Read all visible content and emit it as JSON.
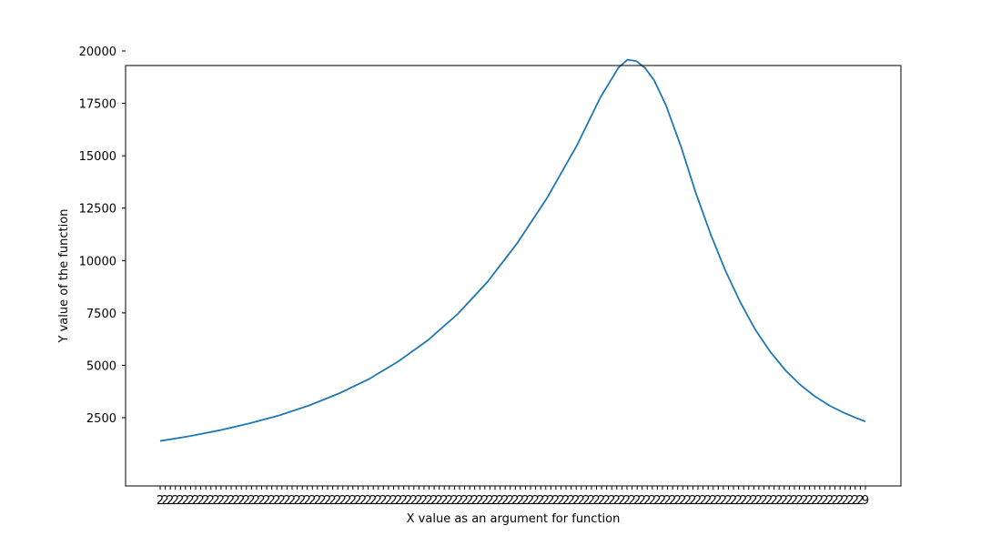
{
  "chart_data": {
    "type": "line",
    "title": "",
    "xlabel": "X value as an argument for function",
    "ylabel": "Y value of the function",
    "x_tick_labels_note_style": "dense overlapping numeric categorical labels",
    "x_category_count": 140,
    "x_first_label": "2",
    "x_last_label": "9",
    "ylim": [
      0,
      20500
    ],
    "yticks": [
      2500,
      5000,
      7500,
      10000,
      12500,
      15000,
      17500,
      20000
    ],
    "grid": false,
    "series": [
      {
        "color": "#1f77b4",
        "points": [
          [
            0,
            1390
          ],
          [
            10,
            1620
          ],
          [
            20,
            1900
          ],
          [
            30,
            2230
          ],
          [
            40,
            2610
          ],
          [
            50,
            3080
          ],
          [
            60,
            3650
          ],
          [
            70,
            4330
          ],
          [
            80,
            5180
          ],
          [
            90,
            6200
          ],
          [
            100,
            7450
          ],
          [
            110,
            8980
          ],
          [
            120,
            10830
          ],
          [
            130,
            12980
          ],
          [
            140,
            15480
          ],
          [
            148,
            17800
          ],
          [
            154,
            19200
          ],
          [
            157,
            19580
          ],
          [
            160,
            19520
          ],
          [
            163,
            19180
          ],
          [
            166,
            18600
          ],
          [
            170,
            17400
          ],
          [
            175,
            15450
          ],
          [
            180,
            13230
          ],
          [
            185,
            11250
          ],
          [
            190,
            9500
          ],
          [
            195,
            8000
          ],
          [
            200,
            6700
          ],
          [
            205,
            5650
          ],
          [
            210,
            4780
          ],
          [
            215,
            4080
          ],
          [
            220,
            3520
          ],
          [
            225,
            3070
          ],
          [
            230,
            2720
          ],
          [
            234,
            2480
          ],
          [
            237,
            2320
          ]
        ]
      }
    ]
  }
}
